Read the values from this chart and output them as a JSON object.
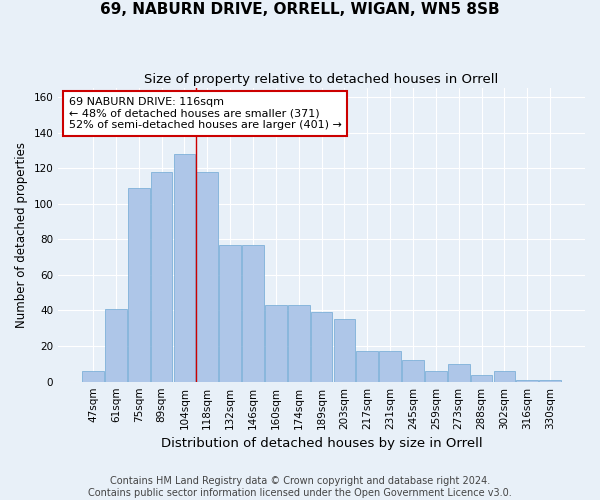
{
  "title": "69, NABURN DRIVE, ORRELL, WIGAN, WN5 8SB",
  "subtitle": "Size of property relative to detached houses in Orrell",
  "xlabel": "Distribution of detached houses by size in Orrell",
  "ylabel": "Number of detached properties",
  "bar_labels": [
    "47sqm",
    "61sqm",
    "75sqm",
    "89sqm",
    "104sqm",
    "118sqm",
    "132sqm",
    "146sqm",
    "160sqm",
    "174sqm",
    "189sqm",
    "203sqm",
    "217sqm",
    "231sqm",
    "245sqm",
    "259sqm",
    "273sqm",
    "288sqm",
    "302sqm",
    "316sqm",
    "330sqm"
  ],
  "bar_values": [
    6,
    41,
    109,
    118,
    128,
    118,
    77,
    77,
    43,
    43,
    39,
    35,
    17,
    17,
    12,
    6,
    10,
    4,
    6,
    1,
    1
  ],
  "bar_color": "#aec6e8",
  "bar_edge_color": "#6fa8d4",
  "property_label": "69 NABURN DRIVE: 116sqm",
  "annotation_line1": "← 48% of detached houses are smaller (371)",
  "annotation_line2": "52% of semi-detached houses are larger (401) →",
  "vline_x_index": 5,
  "vline_color": "#cc0000",
  "annotation_box_color": "#ffffff",
  "annotation_box_edge": "#cc0000",
  "ylim": [
    0,
    165
  ],
  "yticks": [
    0,
    20,
    40,
    60,
    80,
    100,
    120,
    140,
    160
  ],
  "background_color": "#e8f0f8",
  "footer_line1": "Contains HM Land Registry data © Crown copyright and database right 2024.",
  "footer_line2": "Contains public sector information licensed under the Open Government Licence v3.0.",
  "title_fontsize": 11,
  "subtitle_fontsize": 9.5,
  "xlabel_fontsize": 9.5,
  "ylabel_fontsize": 8.5,
  "tick_fontsize": 7.5,
  "footer_fontsize": 7
}
